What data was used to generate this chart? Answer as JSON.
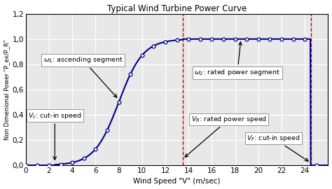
{
  "title": "Typical Wind Turbine Power Curve",
  "xlabel": "Wind Speed \"V\" (m/sec)",
  "ylabel": "Non Dimenional Power \"P_ex/P_R\"",
  "xlim": [
    0,
    26
  ],
  "ylim": [
    0.0,
    1.2
  ],
  "xticks": [
    0,
    2,
    4,
    6,
    8,
    10,
    12,
    14,
    16,
    18,
    20,
    22,
    24
  ],
  "yticks": [
    0.0,
    0.2,
    0.4,
    0.6,
    0.8,
    1.0,
    1.2
  ],
  "ytick_labels": [
    "0,0",
    "0,2",
    "0,4",
    "0,6",
    "0,8",
    "1,0",
    "1,2"
  ],
  "curve_color": "#00008B",
  "marker_facecolor": "#ffffff",
  "marker_edgecolor": "#00008B",
  "dashed_color": "#cc0000",
  "V_cutin": 2.5,
  "V_rated": 13.5,
  "V_cutout": 24.5,
  "background_color": "#ffffff",
  "plot_bg_color": "#e8e8e8",
  "grid_color": "#ffffff",
  "annot_fontsize": 6.8,
  "title_fontsize": 8.5,
  "axis_fontsize": 7.5,
  "tick_fontsize": 7.5
}
